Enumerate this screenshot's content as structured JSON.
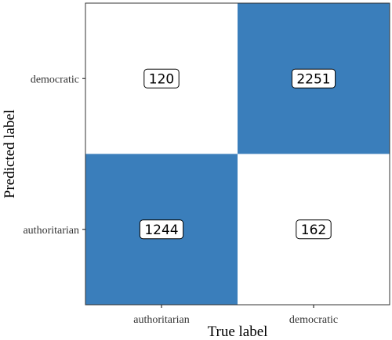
{
  "chart_data": {
    "type": "heatmap",
    "title": "",
    "xlabel": "True label",
    "ylabel": "Predicted label",
    "x_categories": [
      "authoritarian",
      "democratic"
    ],
    "y_categories": [
      "authoritarian",
      "democratic"
    ],
    "cells": [
      {
        "true_label": "authoritarian",
        "predicted_label": "democratic",
        "value": 120
      },
      {
        "true_label": "democratic",
        "predicted_label": "democratic",
        "value": 2251
      },
      {
        "true_label": "authoritarian",
        "predicted_label": "authoritarian",
        "value": 1244
      },
      {
        "true_label": "democratic",
        "predicted_label": "authoritarian",
        "value": 162
      }
    ],
    "colors": {
      "high": "#3a7ebb",
      "low": "#ffffff",
      "panel_border": "#333333",
      "label_border": "#000000",
      "label_fill": "#ffffff"
    },
    "legend": "none"
  }
}
